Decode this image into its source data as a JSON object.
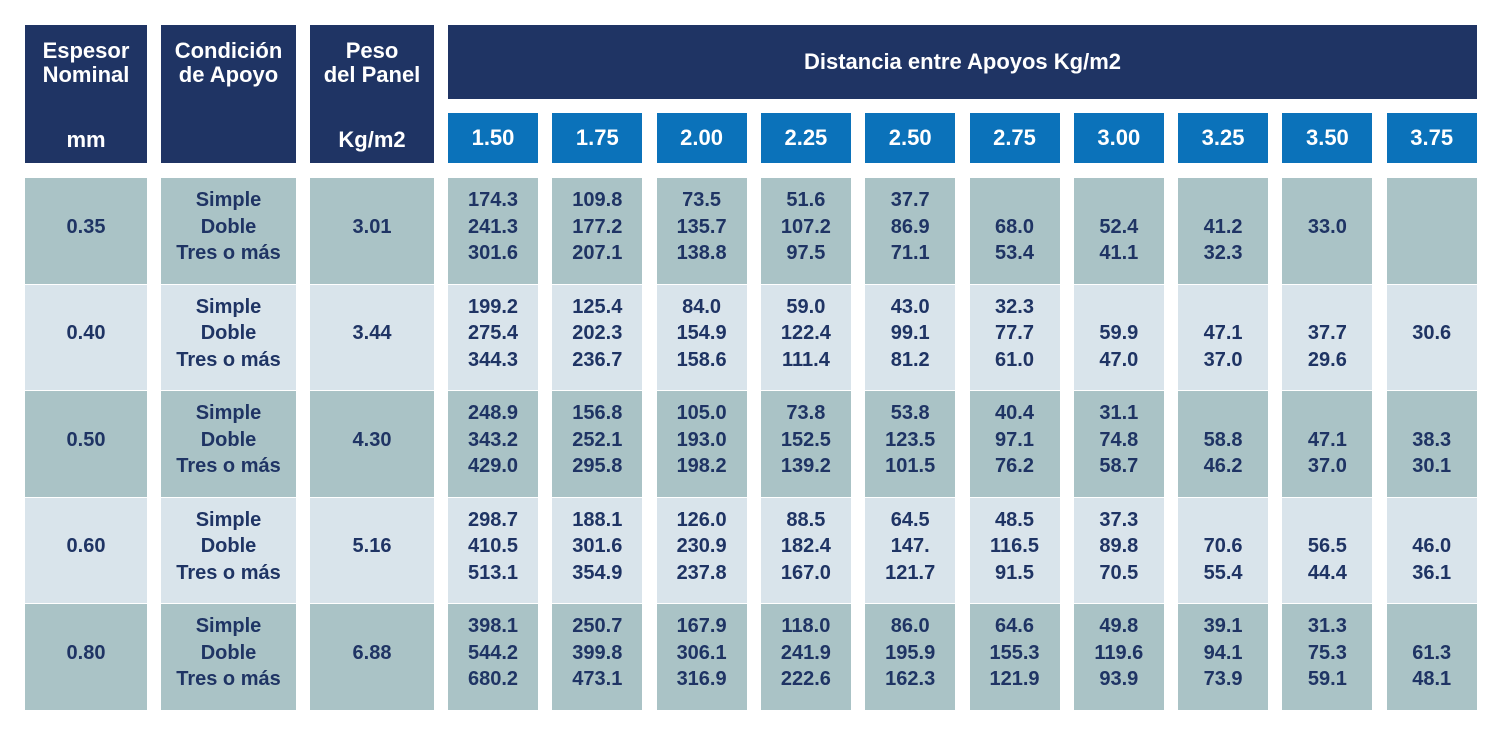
{
  "header": {
    "thickness": {
      "title": "Espesor\nNominal",
      "unit": "mm"
    },
    "support": {
      "title": "Condición\nde Apoyo"
    },
    "weight": {
      "title": "Peso\ndel Panel",
      "unit": "Kg/m2"
    },
    "distance": {
      "title": "Distancia entre Apoyos Kg/m2",
      "spans": [
        "1.50",
        "1.75",
        "2.00",
        "2.25",
        "2.50",
        "2.75",
        "3.00",
        "3.25",
        "3.50",
        "3.75"
      ]
    }
  },
  "table": {
    "rows": [
      {
        "thickness": "0.35",
        "conditions": [
          "Simple",
          "Doble",
          "Tres o más"
        ],
        "weight": "3.01",
        "cells": [
          [
            "174.3",
            "241.3",
            "301.6"
          ],
          [
            "109.8",
            "177.2",
            "207.1"
          ],
          [
            "73.5",
            "135.7",
            "138.8"
          ],
          [
            "51.6",
            "107.2",
            "97.5"
          ],
          [
            "37.7",
            "86.9",
            "71.1"
          ],
          [
            null,
            "68.0",
            "53.4"
          ],
          [
            null,
            "52.4",
            "41.1"
          ],
          [
            null,
            "41.2",
            "32.3"
          ],
          [
            null,
            "33.0",
            null
          ],
          [
            null,
            null,
            null
          ]
        ]
      },
      {
        "thickness": "0.40",
        "conditions": [
          "Simple",
          "Doble",
          "Tres o más"
        ],
        "weight": "3.44",
        "cells": [
          [
            "199.2",
            "275.4",
            "344.3"
          ],
          [
            "125.4",
            "202.3",
            "236.7"
          ],
          [
            "84.0",
            "154.9",
            "158.6"
          ],
          [
            "59.0",
            "122.4",
            "111.4"
          ],
          [
            "43.0",
            "99.1",
            "81.2"
          ],
          [
            "32.3",
            "77.7",
            "61.0"
          ],
          [
            null,
            "59.9",
            "47.0"
          ],
          [
            null,
            "47.1",
            "37.0"
          ],
          [
            null,
            "37.7",
            "29.6"
          ],
          [
            null,
            "30.6",
            null
          ]
        ]
      },
      {
        "thickness": "0.50",
        "conditions": [
          "Simple",
          "Doble",
          "Tres o más"
        ],
        "weight": "4.30",
        "cells": [
          [
            "248.9",
            "343.2",
            "429.0"
          ],
          [
            "156.8",
            "252.1",
            "295.8"
          ],
          [
            "105.0",
            "193.0",
            "198.2"
          ],
          [
            "73.8",
            "152.5",
            "139.2"
          ],
          [
            "53.8",
            "123.5",
            "101.5"
          ],
          [
            "40.4",
            "97.1",
            "76.2"
          ],
          [
            "31.1",
            "74.8",
            "58.7"
          ],
          [
            null,
            "58.8",
            "46.2"
          ],
          [
            null,
            "47.1",
            "37.0"
          ],
          [
            null,
            "38.3",
            "30.1"
          ]
        ]
      },
      {
        "thickness": "0.60",
        "conditions": [
          "Simple",
          "Doble",
          "Tres o más"
        ],
        "weight": "5.16",
        "cells": [
          [
            "298.7",
            "410.5",
            "513.1"
          ],
          [
            "188.1",
            "301.6",
            "354.9"
          ],
          [
            "126.0",
            "230.9",
            "237.8"
          ],
          [
            "88.5",
            "182.4",
            "167.0"
          ],
          [
            "64.5",
            "147.",
            "121.7"
          ],
          [
            "48.5",
            "116.5",
            "91.5"
          ],
          [
            "37.3",
            "89.8",
            "70.5"
          ],
          [
            null,
            "70.6",
            "55.4"
          ],
          [
            null,
            "56.5",
            "44.4"
          ],
          [
            null,
            "46.0",
            "36.1"
          ]
        ]
      },
      {
        "thickness": "0.80",
        "conditions": [
          "Simple",
          "Doble",
          "Tres o más"
        ],
        "weight": "6.88",
        "cells": [
          [
            "398.1",
            "544.2",
            "680.2"
          ],
          [
            "250.7",
            "399.8",
            "473.1"
          ],
          [
            "167.9",
            "306.1",
            "316.9"
          ],
          [
            "118.0",
            "241.9",
            "222.6"
          ],
          [
            "86.0",
            "195.9",
            "162.3"
          ],
          [
            "64.6",
            "155.3",
            "121.9"
          ],
          [
            "49.8",
            "119.6",
            "93.9"
          ],
          [
            "39.1",
            "94.1",
            "73.9"
          ],
          [
            "31.3",
            "75.3",
            "59.1"
          ],
          [
            null,
            "61.3",
            "48.1"
          ]
        ]
      }
    ]
  }
}
